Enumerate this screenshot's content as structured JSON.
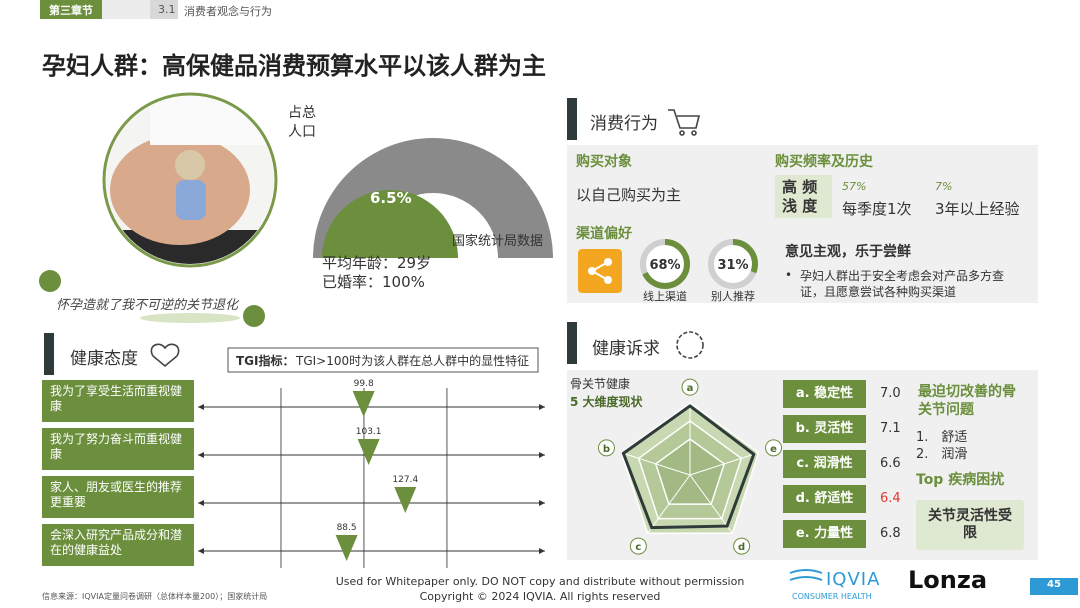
{
  "header": {
    "chapter": "第三章节",
    "section_no": "3.1",
    "section": "消费者观念与行为"
  },
  "title": "孕妇人群：高保健品消费预算水平以该人群为主",
  "quote": "怀孕造就了我不可逆的关节退化",
  "population": {
    "label": "占总人口",
    "value": "6.5%",
    "source": "国家统计局数据",
    "age": "平均年龄：29岁",
    "married": "已婚率：100%"
  },
  "behavior": {
    "heading": "消费行为",
    "target_title": "购买对象",
    "target": "以自己购买为主",
    "freq_title": "购买频率及历史",
    "freq_tag": "高 频 浅 度",
    "freq_items": [
      {
        "pct": "57%",
        "text": "每季度1次"
      },
      {
        "pct": "7%",
        "text": "3年以上经验"
      }
    ],
    "channel_title": "渠道偏好",
    "channels": {
      "values": [
        68,
        31
      ],
      "value_labels": [
        "68%",
        "31%"
      ],
      "names": [
        "线上渠道",
        "别人推荐"
      ]
    },
    "opinion_title": "意见主观，乐于尝鲜",
    "opinion": "孕妇人群出于安全考虑会对产品多方查证，且愿意尝试各种购买渠道"
  },
  "attitude": {
    "heading": "健康态度",
    "tgi_label": "TGI指标：",
    "tgi_note": "TGI>100时为该人群在总人群中的显性特征",
    "xlim": [
      -10,
      220
    ],
    "xticks": [
      45,
      100,
      155
    ],
    "statements": [
      "我为了享受生活而重视健康",
      "我为了努力奋斗而重视健康",
      "家人、朋友或医生的推荐更重要",
      "会深入研究产品成分和潜在的健康益处"
    ],
    "values": [
      99.8,
      103.1,
      127.4,
      88.5
    ]
  },
  "demands": {
    "heading": "健康诉求",
    "radar_title": "骨关节健康",
    "radar_subtitle": "5 大维度现状",
    "letters": [
      "a",
      "b",
      "c",
      "d",
      "e"
    ],
    "items": [
      "a. 稳定性",
      "b. 灵活性",
      "c. 润滑性",
      "d. 舒适性",
      "e. 力量性"
    ],
    "scores": [
      {
        "value": 7,
        "label": "7.0"
      },
      7.1,
      6.6,
      6.4,
      6.8
    ],
    "score_colors": [
      "#333333",
      "#333333",
      "#333333",
      "#e53935",
      "#333333"
    ],
    "rlim": [
      0,
      7.3
    ],
    "urgent_title": "最迫切改善的骨关节问题",
    "urgent": [
      "1.　舒适",
      "2.　润滑"
    ],
    "top_title": "Top 疾病困扰",
    "top": "关节灵活性受限"
  },
  "footer": {
    "source": "信息来源：IQVIA定量问卷调研（总体样本量200）；国家统计局",
    "notice": "Used for Whitepaper only. DO NOT copy and distribute without permission",
    "copyright": "Copyright © 2024 IQVIA. All rights reserved",
    "logo1": "IQVIA",
    "logo1_sub": "CONSUMER HEALTH",
    "logo2": "Lonza",
    "page": "45"
  }
}
